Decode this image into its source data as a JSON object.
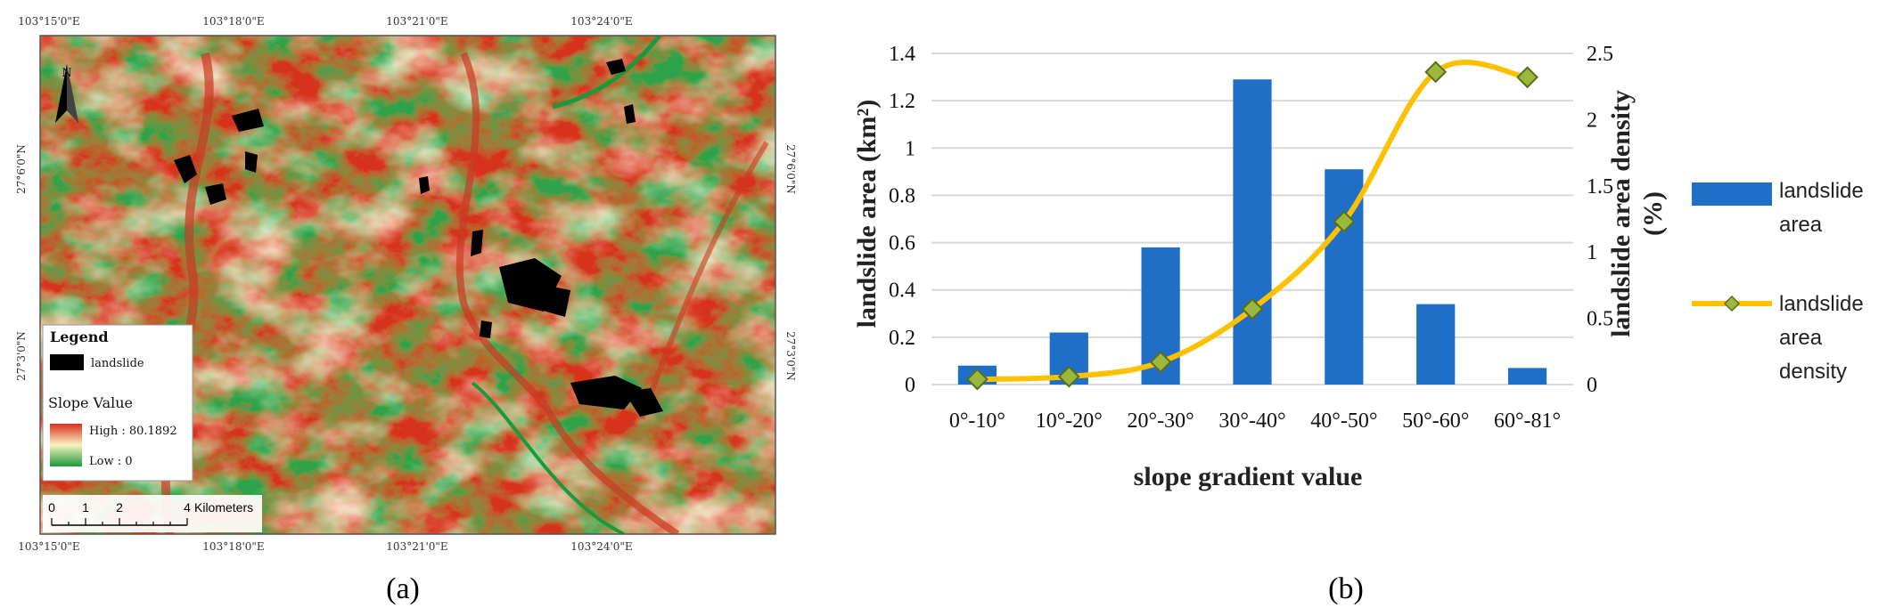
{
  "panel_a": {
    "label": "(a)",
    "top_coords": [
      "103°15'0\"E",
      "103°18'0\"E",
      "103°21'0\"E",
      "103°24'0\"E"
    ],
    "bottom_coords": [
      "103°15'0\"E",
      "103°18'0\"E",
      "103°21'0\"E",
      "103°24'0\"E"
    ],
    "left_coords": [
      "27°6'0\"N",
      "27°3'0\"N"
    ],
    "right_coords": [
      "27°6'0\"N",
      "27°3'0\"N"
    ],
    "north_label": "N",
    "legend": {
      "title": "Legend",
      "landslide_label": "landslide",
      "slope_title": "Slope Value",
      "high_label": "High : 80.1892",
      "low_label": "Low : 0"
    },
    "scale_bar": {
      "ticks": [
        "0",
        "1",
        "2",
        "4"
      ],
      "unit": "Kilometers"
    },
    "colors": {
      "low": "#1a9a3a",
      "mid": "#f7f3c0",
      "high": "#d7301f",
      "landslide": "#000000"
    }
  },
  "panel_b": {
    "label": "(b)",
    "legend": {
      "bar_line1": "landslide",
      "bar_line2": "area",
      "line_line1": "landslide",
      "line_line2": "area",
      "line_line3": "density"
    }
  },
  "chart_data": {
    "type": "bar",
    "categories": [
      "0°-10°",
      "10°-20°",
      "20°-30°",
      "30°-40°",
      "40°-50°",
      "50°-60°",
      "60°-81°"
    ],
    "xlabel": "slope gradient value",
    "ylabel": "landslide area (km²)",
    "y2label_line1": "landslide area density",
    "y2label_line2": "(%)",
    "ylim": [
      0,
      1.4
    ],
    "y_ticks": [
      "0",
      "0.2",
      "0.4",
      "0.6",
      "0.8",
      "1",
      "1.2",
      "1.4"
    ],
    "y2lim": [
      0,
      2.5
    ],
    "y2_ticks": [
      "0",
      "0.5",
      "1",
      "1.5",
      "2",
      "2.5"
    ],
    "grid": true,
    "legend_position": "right",
    "series": [
      {
        "name": "landslide area",
        "type": "bar",
        "axis": "left",
        "color": "#1f6fc6",
        "values": [
          0.08,
          0.22,
          0.58,
          1.29,
          0.91,
          0.34,
          0.07
        ]
      },
      {
        "name": "landslide area density",
        "type": "line",
        "axis": "right",
        "color": "#ffc000",
        "marker_color": "#9bb83a",
        "values": [
          0.04,
          0.06,
          0.17,
          0.57,
          1.23,
          2.36,
          2.32
        ]
      }
    ]
  }
}
